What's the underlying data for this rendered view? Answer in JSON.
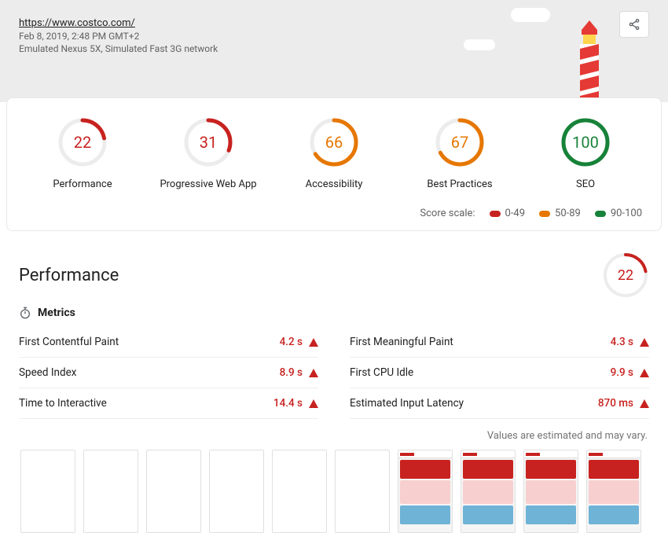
{
  "header": {
    "url": "https://www.costco.com/",
    "timestamp": "Feb 8, 2019, 2:48 PM GMT+2",
    "device": "Emulated Nexus 5X, Simulated Fast 3G network"
  },
  "colors": {
    "fail": "#c7221f",
    "average": "#e67700",
    "pass": "#178239",
    "track": "#ececec",
    "text_muted": "#616161"
  },
  "gauge": {
    "radius": 28,
    "stroke": 5
  },
  "scores": [
    {
      "label": "Performance",
      "value": 22,
      "color": "#c7221f"
    },
    {
      "label": "Progressive Web App",
      "value": 31,
      "color": "#c7221f"
    },
    {
      "label": "Accessibility",
      "value": 66,
      "color": "#e67700"
    },
    {
      "label": "Best Practices",
      "value": 67,
      "color": "#e67700"
    },
    {
      "label": "SEO",
      "value": 100,
      "color": "#178239"
    }
  ],
  "scale": {
    "label": "Score scale:",
    "items": [
      {
        "range": "0-49",
        "color": "#c7221f"
      },
      {
        "range": "50-89",
        "color": "#e67700"
      },
      {
        "range": "90-100",
        "color": "#178239"
      }
    ]
  },
  "performance": {
    "title": "Performance",
    "metrics_label": "Metrics",
    "badge": {
      "value": 22,
      "color": "#c7221f"
    },
    "left": [
      {
        "name": "First Contentful Paint",
        "value": "4.2 s",
        "color": "#c7221f"
      },
      {
        "name": "Speed Index",
        "value": "8.9 s",
        "color": "#c7221f"
      },
      {
        "name": "Time to Interactive",
        "value": "14.4 s",
        "color": "#c7221f"
      }
    ],
    "right": [
      {
        "name": "First Meaningful Paint",
        "value": "4.3 s",
        "color": "#c7221f"
      },
      {
        "name": "First CPU Idle",
        "value": "9.9 s",
        "color": "#c7221f"
      },
      {
        "name": "Estimated Input Latency",
        "value": "870 ms",
        "color": "#c7221f"
      }
    ],
    "note": "Values are estimated and may vary."
  },
  "filmstrip": {
    "frames": [
      {
        "filled": false
      },
      {
        "filled": false
      },
      {
        "filled": false
      },
      {
        "filled": false
      },
      {
        "filled": false
      },
      {
        "filled": false
      },
      {
        "filled": true
      },
      {
        "filled": true
      },
      {
        "filled": true
      },
      {
        "filled": true
      }
    ],
    "mini_colors": {
      "band1": "#c7221f",
      "band2": "#f7cfcf",
      "band3": "#6fb3d6"
    }
  }
}
